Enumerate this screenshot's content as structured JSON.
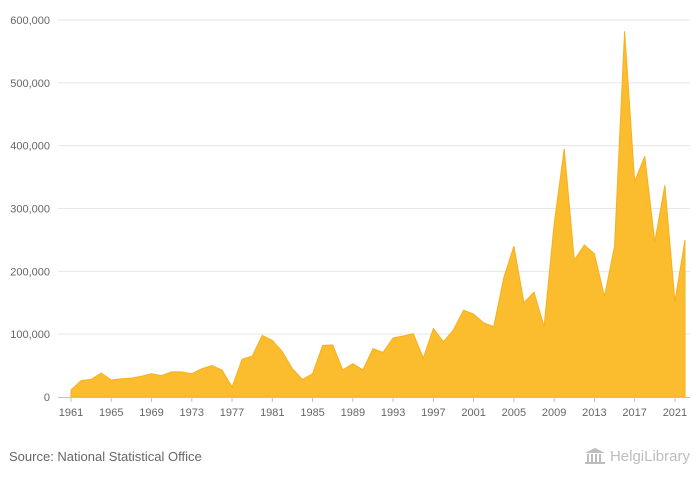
{
  "colors": {
    "area": "#fbbc2d",
    "area_stroke": "#f5b11e",
    "grid": "#e6e6e6",
    "axis": "#c0c0c0",
    "text": "#666666"
  },
  "footer": {
    "source": "Source: National Statistical Office",
    "brand": "HelgiLibrary"
  },
  "brand_icon": "library-building-icon",
  "chart_data": {
    "type": "area",
    "title": "",
    "xlabel": "",
    "ylabel": "",
    "ylim": [
      0,
      600000
    ],
    "grid": true,
    "y_ticks": [
      0,
      100000,
      200000,
      300000,
      400000,
      500000,
      600000
    ],
    "y_tick_labels": [
      "0",
      "100,000",
      "200,000",
      "300,000",
      "400,000",
      "500,000",
      "600,000"
    ],
    "x_tick_labels": [
      "1961",
      "1965",
      "1969",
      "1973",
      "1977",
      "1981",
      "1985",
      "1989",
      "1993",
      "1997",
      "2001",
      "2005",
      "2009",
      "2013",
      "2017",
      "2021"
    ],
    "x": [
      1961,
      1962,
      1963,
      1964,
      1965,
      1966,
      1967,
      1968,
      1969,
      1970,
      1971,
      1972,
      1973,
      1974,
      1975,
      1976,
      1977,
      1978,
      1979,
      1980,
      1981,
      1982,
      1983,
      1984,
      1985,
      1986,
      1987,
      1988,
      1989,
      1990,
      1991,
      1992,
      1993,
      1994,
      1995,
      1996,
      1997,
      1998,
      1999,
      2000,
      2001,
      2002,
      2003,
      2004,
      2005,
      2006,
      2007,
      2008,
      2009,
      2010,
      2011,
      2012,
      2013,
      2014,
      2015,
      2016,
      2017,
      2018,
      2019,
      2020,
      2021,
      2022
    ],
    "values": [
      11000,
      26000,
      28000,
      38000,
      27000,
      29000,
      30000,
      33000,
      37000,
      34000,
      40000,
      40000,
      37000,
      45000,
      50000,
      43000,
      16000,
      60000,
      65000,
      98000,
      90000,
      72000,
      45000,
      28000,
      37000,
      82000,
      83000,
      43000,
      53000,
      43000,
      77000,
      71000,
      94000,
      97000,
      101000,
      62000,
      109000,
      88000,
      107000,
      138000,
      132000,
      118000,
      112000,
      190000,
      240000,
      150000,
      167000,
      112000,
      275000,
      395000,
      218000,
      242000,
      228000,
      160000,
      240000,
      582000,
      343000,
      383000,
      247000,
      337000,
      152000,
      250000
    ]
  }
}
